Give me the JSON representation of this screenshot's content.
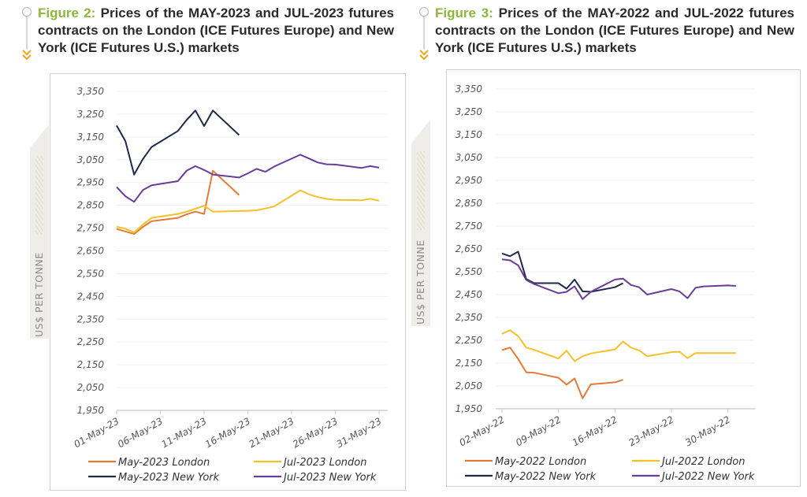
{
  "colors": {
    "accent_green": "#8db63c",
    "accent_orange": "#f0a51e",
    "may_london": "#e07b39",
    "jul_london": "#f5c02a",
    "may_newyork": "#1f2a4a",
    "jul_newyork": "#6a3d9a"
  },
  "chart_data": [
    {
      "type": "line",
      "figure_label": "Figure 2:",
      "title": "Prices of the MAY-2023 and JUL-2023 futures contracts on the London (ICE Futures Europe) and New York (ICE Futures U.S.) markets",
      "xlabel": "",
      "ylabel": "US$ PER TONNE",
      "ylim": [
        1950,
        3350
      ],
      "yticks": [
        1950,
        2050,
        2150,
        2250,
        2350,
        2450,
        2550,
        2650,
        2750,
        2850,
        2950,
        3050,
        3150,
        3250,
        3350
      ],
      "ytick_labels": [
        "1,950",
        "2,050",
        "2,150",
        "2,250",
        "2,350",
        "2,450",
        "2,550",
        "2,650",
        "2,750",
        "2,850",
        "2,950",
        "3,050",
        "3,150",
        "3,250",
        "3,350"
      ],
      "xlim_day": [
        1,
        31
      ],
      "xticks_day": [
        1,
        6,
        11,
        16,
        21,
        26,
        31
      ],
      "xtick_labels": [
        "01-May-23",
        "06-May-23",
        "11-May-23",
        "16-May-23",
        "21-May-23",
        "26-May-23",
        "31-May-23"
      ],
      "grid": true,
      "legend_position": "bottom",
      "series": [
        {
          "name": "May-2023 London",
          "color_key": "may_london",
          "x": [
            1,
            2,
            3,
            4,
            5,
            8,
            9,
            10,
            11,
            12,
            15
          ],
          "y": [
            2746,
            2735,
            2724,
            2755,
            2780,
            2795,
            2810,
            2822,
            2812,
            3002,
            2895
          ]
        },
        {
          "name": "Jul-2023 London",
          "color_key": "jul_london",
          "x": [
            1,
            2,
            3,
            4,
            5,
            8,
            9,
            10,
            11,
            12,
            15,
            16,
            17,
            18,
            19,
            22,
            23,
            24,
            25,
            26,
            29,
            30,
            31
          ],
          "y": [
            2756,
            2747,
            2731,
            2765,
            2795,
            2812,
            2822,
            2835,
            2848,
            2822,
            2825,
            2826,
            2828,
            2836,
            2845,
            2916,
            2898,
            2886,
            2878,
            2874,
            2872,
            2879,
            2870
          ]
        },
        {
          "name": "May-2023 New York",
          "color_key": "may_newyork",
          "x": [
            1,
            2,
            3,
            4,
            5,
            8,
            9,
            10,
            11,
            12,
            15
          ],
          "y": [
            3200,
            3132,
            2985,
            3053,
            3106,
            3176,
            3224,
            3266,
            3198,
            3266,
            3158
          ]
        },
        {
          "name": "Jul-2023 New York",
          "color_key": "jul_newyork",
          "x": [
            1,
            2,
            3,
            4,
            5,
            8,
            9,
            10,
            11,
            12,
            15,
            16,
            17,
            18,
            19,
            22,
            23,
            24,
            25,
            26,
            29,
            30,
            31
          ],
          "y": [
            2930,
            2890,
            2865,
            2917,
            2938,
            2956,
            3002,
            3022,
            3005,
            2985,
            2972,
            2990,
            3010,
            2997,
            3020,
            3072,
            3055,
            3038,
            3030,
            3029,
            3014,
            3022,
            3015
          ]
        }
      ]
    },
    {
      "type": "line",
      "figure_label": "Figure 3:",
      "title": "Prices of the MAY-2022 and JUL-2022 futures contracts on the London (ICE Futures Europe) and New York (ICE Futures U.S.) markets",
      "xlabel": "",
      "ylabel": "US$ PER TONNE",
      "ylim": [
        1950,
        3350
      ],
      "yticks": [
        1950,
        2050,
        2150,
        2250,
        2350,
        2450,
        2550,
        2650,
        2750,
        2850,
        2950,
        3050,
        3150,
        3250,
        3350
      ],
      "ytick_labels": [
        "1,950",
        "2,050",
        "2,150",
        "2,250",
        "2,350",
        "2,450",
        "2,550",
        "2,650",
        "2,750",
        "2,850",
        "2,950",
        "3,050",
        "3,150",
        "3,250",
        "3,350"
      ],
      "xlim_day": [
        2,
        32
      ],
      "xticks_day": [
        2,
        9,
        16,
        23,
        30
      ],
      "xtick_labels": [
        "02-May-22",
        "09-May-22",
        "16-May-22",
        "23-May-22",
        "30-May-22"
      ],
      "grid": true,
      "legend_position": "bottom",
      "series": [
        {
          "name": "May-2022 London",
          "color_key": "may_london",
          "x": [
            2,
            3,
            4,
            5,
            6,
            9,
            10,
            11,
            12,
            13,
            16,
            17
          ],
          "y": [
            2207,
            2218,
            2168,
            2110,
            2108,
            2086,
            2056,
            2083,
            1996,
            2057,
            2066,
            2077
          ]
        },
        {
          "name": "Jul-2022 London",
          "color_key": "jul_london",
          "x": [
            2,
            3,
            4,
            5,
            6,
            9,
            10,
            11,
            12,
            13,
            16,
            17,
            18,
            19,
            20,
            23,
            24,
            25,
            26,
            27,
            30,
            31
          ],
          "y": [
            2278,
            2294,
            2268,
            2218,
            2208,
            2170,
            2205,
            2158,
            2180,
            2192,
            2210,
            2244,
            2218,
            2206,
            2180,
            2198,
            2200,
            2172,
            2194,
            2194,
            2194,
            2194
          ]
        },
        {
          "name": "May-2022 New York",
          "color_key": "may_newyork",
          "x": [
            2,
            3,
            4,
            5,
            6,
            9,
            10,
            11,
            12,
            13,
            16,
            17
          ],
          "y": [
            2630,
            2618,
            2638,
            2518,
            2500,
            2500,
            2476,
            2516,
            2464,
            2462,
            2482,
            2500
          ]
        },
        {
          "name": "Jul-2022 New York",
          "color_key": "jul_newyork",
          "x": [
            2,
            3,
            4,
            5,
            6,
            9,
            10,
            11,
            12,
            13,
            16,
            17,
            18,
            19,
            20,
            23,
            24,
            25,
            26,
            27,
            30,
            31
          ],
          "y": [
            2604,
            2600,
            2578,
            2514,
            2496,
            2456,
            2462,
            2486,
            2430,
            2462,
            2516,
            2520,
            2492,
            2482,
            2450,
            2474,
            2464,
            2434,
            2480,
            2486,
            2490,
            2488
          ]
        }
      ]
    }
  ]
}
